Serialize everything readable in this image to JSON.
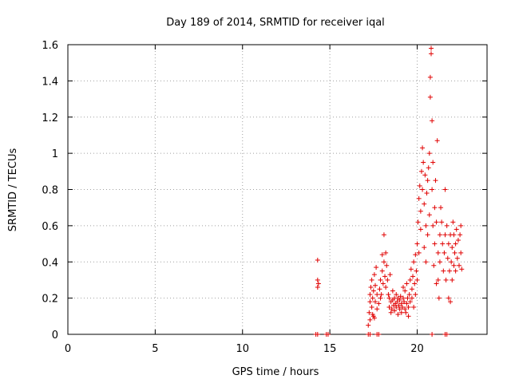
{
  "chart_data": {
    "type": "scatter",
    "title": "Day 189 of 2014, SRMTID for receiver iqal",
    "xlabel": "GPS time / hours",
    "ylabel": "SRMTID / TECUs",
    "xlim": [
      0,
      24
    ],
    "ylim": [
      0,
      1.6
    ],
    "x_ticks": [
      {
        "value": 0,
        "label": "0"
      },
      {
        "value": 5,
        "label": "5"
      },
      {
        "value": 10,
        "label": "10"
      },
      {
        "value": 15,
        "label": "15"
      },
      {
        "value": 20,
        "label": "20"
      }
    ],
    "y_ticks": [
      {
        "value": 0,
        "label": "0"
      },
      {
        "value": 0.2,
        "label": "0.2"
      },
      {
        "value": 0.4,
        "label": "0.4"
      },
      {
        "value": 0.6,
        "label": "0.6"
      },
      {
        "value": 0.8,
        "label": "0.8"
      },
      {
        "value": 1.0,
        "label": "1"
      },
      {
        "value": 1.2,
        "label": "1.2"
      },
      {
        "value": 1.4,
        "label": "1.4"
      },
      {
        "value": 1.6,
        "label": "1.6"
      }
    ],
    "grid": true,
    "marker": "+",
    "series": [
      {
        "name": "SRMTID",
        "color": "#e00000",
        "points": [
          [
            14.3,
            0.41
          ],
          [
            14.3,
            0.3
          ],
          [
            14.35,
            0.28
          ],
          [
            14.3,
            0.26
          ],
          [
            14.2,
            0.0
          ],
          [
            14.3,
            0.0
          ],
          [
            14.8,
            0.0
          ],
          [
            14.9,
            0.0
          ],
          [
            17.2,
            0.0
          ],
          [
            17.3,
            0.0
          ],
          [
            17.7,
            0.0
          ],
          [
            17.8,
            0.0
          ],
          [
            17.2,
            0.05
          ],
          [
            17.25,
            0.12
          ],
          [
            17.3,
            0.18
          ],
          [
            17.3,
            0.22
          ],
          [
            17.35,
            0.26
          ],
          [
            17.4,
            0.15
          ],
          [
            17.4,
            0.3
          ],
          [
            17.45,
            0.2
          ],
          [
            17.5,
            0.1
          ],
          [
            17.5,
            0.24
          ],
          [
            17.55,
            0.33
          ],
          [
            17.6,
            0.18
          ],
          [
            17.6,
            0.27
          ],
          [
            17.65,
            0.37
          ],
          [
            17.7,
            0.22
          ],
          [
            17.7,
            0.14
          ],
          [
            17.3,
            0.08
          ],
          [
            17.45,
            0.11
          ],
          [
            17.55,
            0.09
          ],
          [
            17.8,
            0.17
          ],
          [
            17.85,
            0.25
          ],
          [
            17.9,
            0.3
          ],
          [
            17.9,
            0.2
          ],
          [
            17.95,
            0.22
          ],
          [
            18.0,
            0.35
          ],
          [
            18.0,
            0.44
          ],
          [
            18.05,
            0.28
          ],
          [
            18.1,
            0.55
          ],
          [
            18.1,
            0.4
          ],
          [
            18.15,
            0.32
          ],
          [
            18.2,
            0.26
          ],
          [
            18.2,
            0.45
          ],
          [
            18.25,
            0.38
          ],
          [
            18.3,
            0.3
          ],
          [
            18.35,
            0.22
          ],
          [
            18.4,
            0.2
          ],
          [
            18.4,
            0.15
          ],
          [
            18.45,
            0.33
          ],
          [
            18.5,
            0.18
          ],
          [
            18.5,
            0.12
          ],
          [
            18.55,
            0.14
          ],
          [
            18.6,
            0.19
          ],
          [
            18.6,
            0.24
          ],
          [
            18.65,
            0.16
          ],
          [
            18.7,
            0.2
          ],
          [
            18.7,
            0.13
          ],
          [
            18.75,
            0.17
          ],
          [
            18.8,
            0.15
          ],
          [
            18.8,
            0.22
          ],
          [
            18.85,
            0.18
          ],
          [
            18.9,
            0.11
          ],
          [
            18.9,
            0.2
          ],
          [
            18.95,
            0.16
          ],
          [
            19.0,
            0.14
          ],
          [
            19.0,
            0.19
          ],
          [
            19.05,
            0.21
          ],
          [
            19.1,
            0.17
          ],
          [
            19.1,
            0.12
          ],
          [
            19.15,
            0.15
          ],
          [
            19.2,
            0.2
          ],
          [
            19.2,
            0.26
          ],
          [
            19.25,
            0.18
          ],
          [
            19.3,
            0.14
          ],
          [
            19.3,
            0.24
          ],
          [
            19.35,
            0.12
          ],
          [
            19.4,
            0.17
          ],
          [
            19.4,
            0.28
          ],
          [
            19.45,
            0.2
          ],
          [
            19.5,
            0.15
          ],
          [
            19.5,
            0.1
          ],
          [
            19.55,
            0.22
          ],
          [
            19.6,
            0.18
          ],
          [
            19.6,
            0.3
          ],
          [
            19.65,
            0.36
          ],
          [
            19.7,
            0.2
          ],
          [
            19.7,
            0.25
          ],
          [
            19.75,
            0.32
          ],
          [
            19.8,
            0.4
          ],
          [
            19.8,
            0.15
          ],
          [
            19.85,
            0.28
          ],
          [
            19.9,
            0.44
          ],
          [
            19.9,
            0.22
          ],
          [
            19.95,
            0.35
          ],
          [
            20.0,
            0.5
          ],
          [
            20.0,
            0.3
          ],
          [
            20.05,
            0.62
          ],
          [
            20.1,
            0.75
          ],
          [
            20.1,
            0.45
          ],
          [
            20.15,
            0.82
          ],
          [
            20.2,
            0.68
          ],
          [
            20.2,
            0.58
          ],
          [
            20.25,
            0.9
          ],
          [
            20.3,
            1.03
          ],
          [
            20.3,
            0.8
          ],
          [
            20.35,
            0.95
          ],
          [
            20.4,
            0.72
          ],
          [
            20.4,
            0.48
          ],
          [
            20.45,
            0.88
          ],
          [
            20.5,
            0.6
          ],
          [
            20.5,
            0.4
          ],
          [
            20.55,
            0.78
          ],
          [
            20.6,
            0.85
          ],
          [
            20.6,
            0.55
          ],
          [
            20.65,
            0.92
          ],
          [
            20.7,
            1.0
          ],
          [
            20.7,
            0.66
          ],
          [
            20.75,
            1.31
          ],
          [
            20.75,
            1.42
          ],
          [
            20.8,
            1.55
          ],
          [
            20.8,
            1.58
          ],
          [
            20.85,
            1.18
          ],
          [
            20.85,
            0.8
          ],
          [
            20.9,
            0.95
          ],
          [
            20.9,
            0.6
          ],
          [
            20.95,
            0.38
          ],
          [
            21.0,
            0.7
          ],
          [
            21.0,
            0.5
          ],
          [
            21.05,
            0.85
          ],
          [
            21.1,
            0.62
          ],
          [
            21.1,
            0.28
          ],
          [
            21.15,
            1.07
          ],
          [
            21.2,
            0.45
          ],
          [
            21.2,
            0.3
          ],
          [
            21.25,
            0.2
          ],
          [
            21.3,
            0.55
          ],
          [
            21.3,
            0.4
          ],
          [
            21.35,
            0.7
          ],
          [
            21.4,
            0.62
          ],
          [
            21.45,
            0.5
          ],
          [
            21.5,
            0.35
          ],
          [
            21.55,
            0.45
          ],
          [
            21.6,
            0.8
          ],
          [
            21.6,
            0.55
          ],
          [
            21.65,
            0.3
          ],
          [
            21.7,
            0.6
          ],
          [
            21.75,
            0.42
          ],
          [
            21.8,
            0.5
          ],
          [
            21.8,
            0.2
          ],
          [
            21.85,
            0.35
          ],
          [
            21.9,
            0.55
          ],
          [
            21.9,
            0.18
          ],
          [
            21.95,
            0.4
          ],
          [
            22.0,
            0.48
          ],
          [
            22.0,
            0.3
          ],
          [
            22.05,
            0.62
          ],
          [
            22.1,
            0.55
          ],
          [
            22.1,
            0.38
          ],
          [
            22.15,
            0.45
          ],
          [
            22.2,
            0.5
          ],
          [
            22.2,
            0.35
          ],
          [
            22.25,
            0.58
          ],
          [
            22.3,
            0.42
          ],
          [
            22.35,
            0.52
          ],
          [
            22.4,
            0.38
          ],
          [
            22.45,
            0.55
          ],
          [
            22.5,
            0.6
          ],
          [
            22.5,
            0.45
          ],
          [
            22.55,
            0.36
          ],
          [
            20.85,
            0.0
          ],
          [
            21.6,
            0.0
          ],
          [
            21.7,
            0.0
          ]
        ]
      }
    ]
  }
}
